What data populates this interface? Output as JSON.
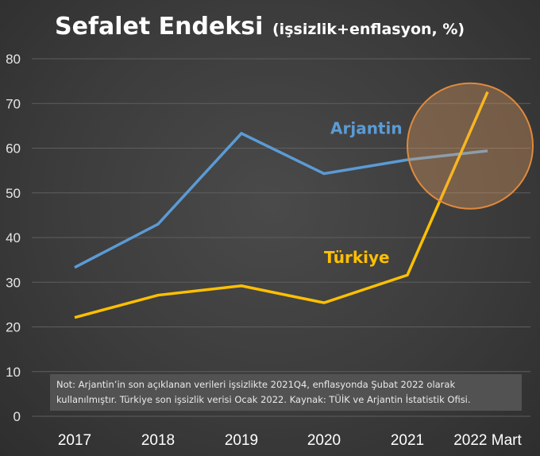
{
  "chart_data": {
    "type": "line",
    "title": "Sefalet Endeksi",
    "subtitle": "(işsizlik+enflasyon, %)",
    "categories": [
      "2017",
      "2018",
      "2019",
      "2020",
      "2021",
      "2022 Mart"
    ],
    "series": [
      {
        "name": "Arjantin",
        "color": "#5b9bd5",
        "values": [
          33.3,
          43.0,
          63.3,
          54.3,
          57.4,
          59.4
        ]
      },
      {
        "name": "Türkiye",
        "color": "#ffc000",
        "values": [
          22.1,
          27.1,
          29.2,
          25.4,
          31.6,
          72.6
        ]
      }
    ],
    "ylim": [
      0,
      80
    ],
    "yticks": [
      "0",
      "10",
      "20",
      "30",
      "40",
      "50",
      "60",
      "70",
      "80"
    ],
    "grid": true,
    "highlight": {
      "x": "2022 Mart",
      "color": "#e8a060"
    },
    "note": "Not: Arjantin’in son açıklanan verileri işsizlikte 2021Q4, enflasyonda Şubat 2022 olarak kullanılmıştır. Türkiye son işsizlik verisi Ocak 2022. Kaynak: TÜİK ve Arjantin İstatistik Ofisi."
  }
}
